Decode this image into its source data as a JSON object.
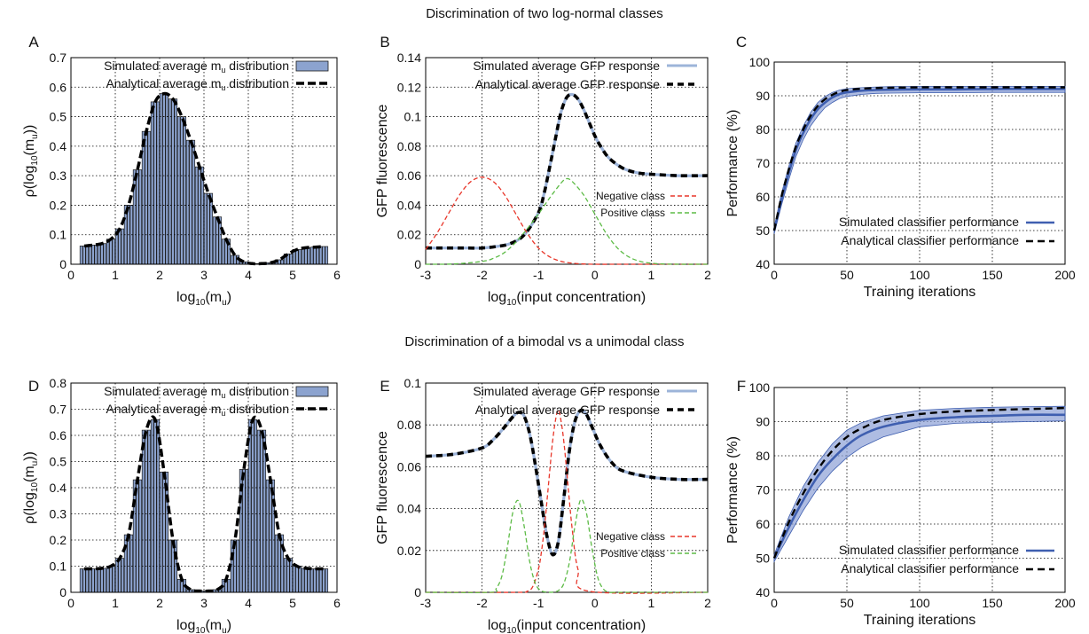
{
  "titles": {
    "top": "Discrimination of two log-normal classes",
    "bottom": "Discrimination of a bimodal vs a unimodal class"
  },
  "colors": {
    "bar_fill": "#8ca3cf",
    "simulated_gfp": "#9db4d9",
    "analytical": "#000000",
    "negative": "#e8362a",
    "positive": "#5dbb46",
    "performance_line": "#3f5fb0",
    "performance_band": "#8ca0d6"
  },
  "chart_data": [
    {
      "id": "A",
      "panel_letter": "A",
      "type": "bar",
      "xlabel": "log10(mu)",
      "ylabel": "ρ(log10(mu))",
      "xlim": [
        0,
        6
      ],
      "ylim": [
        0,
        0.7
      ],
      "xticks": [
        "0",
        "1",
        "2",
        "3",
        "4",
        "5",
        "6"
      ],
      "yticks": [
        "0",
        "0.1",
        "0.2",
        "0.3",
        "0.4",
        "0.5",
        "0.6",
        "0.7"
      ],
      "grid": true,
      "legend_position": "top-right",
      "legend": [
        "Simulated average mu distribution",
        "Analytical average mu distribution"
      ],
      "bar_values": {
        "x": [
          0.3,
          0.5,
          0.7,
          0.9,
          1.1,
          1.3,
          1.5,
          1.7,
          1.9,
          2.1,
          2.3,
          2.5,
          2.7,
          2.9,
          3.1,
          3.3,
          3.5,
          3.7,
          3.9,
          4.1,
          4.3,
          4.5,
          4.7,
          4.9,
          5.1,
          5.3,
          5.5,
          5.7
        ],
        "y": [
          0.062,
          0.065,
          0.07,
          0.085,
          0.12,
          0.2,
          0.32,
          0.45,
          0.55,
          0.578,
          0.56,
          0.5,
          0.42,
          0.33,
          0.24,
          0.16,
          0.085,
          0.03,
          0.008,
          0.002,
          0.002,
          0.005,
          0.015,
          0.035,
          0.05,
          0.056,
          0.058,
          0.06
        ]
      },
      "analytical_curve": {
        "x": [
          0.3,
          0.5,
          0.7,
          0.9,
          1.1,
          1.3,
          1.5,
          1.7,
          1.9,
          2.1,
          2.3,
          2.5,
          2.7,
          2.9,
          3.1,
          3.3,
          3.5,
          3.7,
          3.9,
          4.1,
          4.3,
          4.5,
          4.7,
          4.9,
          5.1,
          5.3,
          5.5,
          5.7
        ],
        "y": [
          0.062,
          0.065,
          0.07,
          0.085,
          0.12,
          0.2,
          0.32,
          0.45,
          0.55,
          0.578,
          0.56,
          0.5,
          0.42,
          0.33,
          0.24,
          0.16,
          0.085,
          0.03,
          0.008,
          0.002,
          0.002,
          0.005,
          0.015,
          0.035,
          0.05,
          0.056,
          0.058,
          0.06
        ]
      }
    },
    {
      "id": "B",
      "panel_letter": "B",
      "type": "line",
      "xlabel": "log10(input concentration)",
      "ylabel": "GFP fluorescence",
      "xlim": [
        -3,
        2
      ],
      "ylim": [
        0,
        0.14
      ],
      "xticks": [
        "-3",
        "-2",
        "-1",
        "0",
        "1",
        "2"
      ],
      "yticks": [
        "0",
        "0.02",
        "0.04",
        "0.06",
        "0.08",
        "0.1",
        "0.12",
        "0.14"
      ],
      "grid": true,
      "legend_position": "top-right",
      "legend": [
        "Simulated average GFP response",
        "Analytical average GFP response"
      ],
      "legend2": [
        "Negative class",
        "Positive class"
      ],
      "series": [
        {
          "name": "Simulated average GFP response",
          "role": "simulated",
          "x": [
            -3,
            -2.75,
            -2.5,
            -2.25,
            -2,
            -1.75,
            -1.5,
            -1.25,
            -1,
            -0.9,
            -0.8,
            -0.7,
            -0.6,
            -0.5,
            -0.4,
            -0.3,
            -0.2,
            -0.1,
            0,
            0.1,
            0.25,
            0.5,
            0.75,
            1,
            1.5,
            2
          ],
          "y": [
            0.011,
            0.011,
            0.011,
            0.011,
            0.011,
            0.012,
            0.014,
            0.02,
            0.035,
            0.048,
            0.066,
            0.085,
            0.103,
            0.113,
            0.115,
            0.112,
            0.105,
            0.096,
            0.087,
            0.08,
            0.072,
            0.065,
            0.062,
            0.061,
            0.06,
            0.06
          ]
        },
        {
          "name": "Analytical average GFP response",
          "role": "analytical",
          "x": [
            -3,
            -2.75,
            -2.5,
            -2.25,
            -2,
            -1.75,
            -1.5,
            -1.25,
            -1,
            -0.9,
            -0.8,
            -0.7,
            -0.6,
            -0.5,
            -0.4,
            -0.3,
            -0.2,
            -0.1,
            0,
            0.1,
            0.25,
            0.5,
            0.75,
            1,
            1.5,
            2
          ],
          "y": [
            0.011,
            0.011,
            0.011,
            0.011,
            0.011,
            0.012,
            0.014,
            0.02,
            0.035,
            0.048,
            0.066,
            0.085,
            0.103,
            0.113,
            0.115,
            0.112,
            0.105,
            0.096,
            0.087,
            0.08,
            0.072,
            0.065,
            0.062,
            0.061,
            0.06,
            0.06
          ]
        },
        {
          "name": "Negative class",
          "role": "negative",
          "x": [
            -3,
            -2.8,
            -2.6,
            -2.4,
            -2.2,
            -2,
            -1.8,
            -1.6,
            -1.4,
            -1.2,
            -1,
            -0.8,
            -0.6,
            -0.4,
            -0.2,
            0,
            0.5,
            1,
            1.5,
            2
          ],
          "y": [
            0.01,
            0.021,
            0.034,
            0.047,
            0.056,
            0.059,
            0.056,
            0.047,
            0.034,
            0.021,
            0.011,
            0.005,
            0.002,
            0.0007,
            0.0002,
            0,
            0,
            0,
            0,
            0
          ]
        },
        {
          "name": "Positive class",
          "role": "positive",
          "x": [
            -3,
            -2.5,
            -2,
            -1.8,
            -1.6,
            -1.4,
            -1.2,
            -1,
            -0.8,
            -0.6,
            -0.5,
            -0.4,
            -0.2,
            0,
            0.2,
            0.4,
            0.6,
            0.8,
            1,
            1.2,
            1.5,
            2
          ],
          "y": [
            0,
            0.0002,
            0.0019,
            0.004,
            0.008,
            0.015,
            0.024,
            0.034,
            0.045,
            0.055,
            0.058,
            0.056,
            0.047,
            0.034,
            0.021,
            0.011,
            0.005,
            0.002,
            0.0007,
            0.0002,
            0,
            0
          ]
        }
      ]
    },
    {
      "id": "C",
      "panel_letter": "C",
      "type": "line",
      "xlabel": "Training iterations",
      "ylabel": "Performance (%)",
      "xlim": [
        0,
        200
      ],
      "ylim": [
        40,
        100
      ],
      "xticks": [
        "0",
        "50",
        "100",
        "150",
        "200"
      ],
      "yticks": [
        "40",
        "50",
        "60",
        "70",
        "80",
        "90",
        "100"
      ],
      "grid": true,
      "legend_position": "bottom-right",
      "legend": [
        "Simulated classifier performance",
        "Analytical classifier performance"
      ],
      "x": [
        0,
        5,
        10,
        15,
        20,
        25,
        30,
        35,
        40,
        45,
        50,
        60,
        70,
        80,
        100,
        125,
        150,
        175,
        200
      ],
      "series": [
        {
          "name": "Simulated classifier performance",
          "role": "simulated",
          "y": [
            50,
            59,
            67,
            74,
            79,
            83,
            86,
            88,
            89.5,
            90.5,
            91,
            91.5,
            91.7,
            91.8,
            91.9,
            91.9,
            92,
            92,
            92
          ]
        },
        {
          "name": "Analytical classifier performance",
          "role": "analytical",
          "y": [
            50,
            60,
            68,
            75,
            80,
            84,
            87,
            89,
            90.3,
            91.2,
            91.7,
            92.1,
            92.3,
            92.4,
            92.5,
            92.5,
            92.5,
            92.5,
            92.5
          ]
        }
      ],
      "band": {
        "upper": [
          51,
          61,
          69,
          76,
          81,
          85,
          88,
          89.8,
          91,
          91.7,
          92.1,
          92.4,
          92.6,
          92.7,
          92.8,
          92.8,
          92.8,
          92.8,
          92.8
        ],
        "lower": [
          49,
          57.5,
          65,
          72,
          77,
          81,
          84,
          86.5,
          88,
          89.2,
          89.8,
          90.4,
          90.7,
          90.8,
          90.9,
          90.9,
          91,
          91,
          91
        ]
      }
    },
    {
      "id": "D",
      "panel_letter": "D",
      "type": "bar",
      "xlabel": "log10(mu)",
      "ylabel": "ρ(log10(mu))",
      "xlim": [
        0,
        6
      ],
      "ylim": [
        0,
        0.8
      ],
      "xticks": [
        "0",
        "1",
        "2",
        "3",
        "4",
        "5",
        "6"
      ],
      "yticks": [
        "0",
        "0.1",
        "0.2",
        "0.3",
        "0.4",
        "0.5",
        "0.6",
        "0.7",
        "0.8"
      ],
      "grid": true,
      "legend_position": "top-right",
      "legend": [
        "Simulated average mu distribution",
        "Analytical average mu distribution"
      ],
      "bar_values": {
        "x": [
          0.3,
          0.5,
          0.7,
          0.9,
          1.1,
          1.3,
          1.5,
          1.7,
          1.9,
          2.1,
          2.3,
          2.5,
          2.7,
          2.9,
          3.1,
          3.3,
          3.5,
          3.7,
          3.9,
          4.1,
          4.3,
          4.5,
          4.7,
          4.9,
          5.1,
          5.3,
          5.5,
          5.7
        ],
        "y": [
          0.09,
          0.09,
          0.092,
          0.1,
          0.13,
          0.22,
          0.43,
          0.62,
          0.66,
          0.46,
          0.2,
          0.05,
          0.01,
          0.005,
          0.005,
          0.01,
          0.05,
          0.2,
          0.47,
          0.66,
          0.62,
          0.43,
          0.22,
          0.13,
          0.1,
          0.092,
          0.09,
          0.09
        ]
      },
      "analytical_curve": {
        "x": [
          0.3,
          0.5,
          0.7,
          0.9,
          1.1,
          1.3,
          1.5,
          1.7,
          1.9,
          2.1,
          2.3,
          2.5,
          2.7,
          2.9,
          3.1,
          3.3,
          3.5,
          3.7,
          3.9,
          4.1,
          4.3,
          4.5,
          4.7,
          4.9,
          5.1,
          5.3,
          5.5,
          5.7
        ],
        "y": [
          0.09,
          0.09,
          0.092,
          0.1,
          0.13,
          0.22,
          0.43,
          0.62,
          0.66,
          0.46,
          0.2,
          0.05,
          0.01,
          0.005,
          0.005,
          0.01,
          0.05,
          0.2,
          0.47,
          0.66,
          0.62,
          0.43,
          0.22,
          0.13,
          0.1,
          0.092,
          0.09,
          0.09
        ]
      }
    },
    {
      "id": "E",
      "panel_letter": "E",
      "type": "line",
      "xlabel": "log10(input concentration)",
      "ylabel": "GFP fluorescence",
      "xlim": [
        -3,
        2
      ],
      "ylim": [
        0,
        0.1
      ],
      "xticks": [
        "-3",
        "-2",
        "-1",
        "0",
        "1",
        "2"
      ],
      "yticks": [
        "0",
        "0.02",
        "0.04",
        "0.06",
        "0.08",
        "0.1"
      ],
      "grid": true,
      "legend_position": "top-right",
      "legend": [
        "Simulated average GFP response",
        "Analytical average GFP response"
      ],
      "legend2": [
        "Negative class",
        "Positive class"
      ],
      "series": [
        {
          "name": "Simulated average GFP response",
          "role": "simulated",
          "x": [
            -3,
            -2.5,
            -2,
            -1.8,
            -1.6,
            -1.45,
            -1.35,
            -1.25,
            -1.15,
            -1.05,
            -0.95,
            -0.85,
            -0.75,
            -0.65,
            -0.55,
            -0.45,
            -0.35,
            -0.25,
            -0.15,
            -0.05,
            0.1,
            0.3,
            0.5,
            1,
            1.5,
            2
          ],
          "y": [
            0.065,
            0.066,
            0.069,
            0.073,
            0.079,
            0.084,
            0.086,
            0.084,
            0.075,
            0.06,
            0.043,
            0.027,
            0.018,
            0.024,
            0.045,
            0.068,
            0.082,
            0.087,
            0.085,
            0.079,
            0.07,
            0.062,
            0.058,
            0.055,
            0.054,
            0.054
          ]
        },
        {
          "name": "Analytical average GFP response",
          "role": "analytical",
          "x": [
            -3,
            -2.5,
            -2,
            -1.8,
            -1.6,
            -1.45,
            -1.35,
            -1.25,
            -1.15,
            -1.05,
            -0.95,
            -0.85,
            -0.75,
            -0.65,
            -0.55,
            -0.45,
            -0.35,
            -0.25,
            -0.15,
            -0.05,
            0.1,
            0.3,
            0.5,
            1,
            1.5,
            2
          ],
          "y": [
            0.065,
            0.066,
            0.069,
            0.073,
            0.079,
            0.084,
            0.086,
            0.084,
            0.075,
            0.06,
            0.043,
            0.027,
            0.018,
            0.024,
            0.045,
            0.068,
            0.082,
            0.087,
            0.085,
            0.079,
            0.07,
            0.062,
            0.058,
            0.055,
            0.054,
            0.054
          ]
        },
        {
          "name": "Negative class",
          "role": "negative",
          "x": [
            -3,
            -1.4,
            -1.2,
            -1.1,
            -1,
            -0.95,
            -0.9,
            -0.85,
            -0.8,
            -0.75,
            -0.7,
            -0.65,
            -0.6,
            -0.55,
            -0.5,
            -0.4,
            -0.3,
            -0.1,
            2
          ],
          "y": [
            0,
            0,
            0.0005,
            0.0028,
            0.0111,
            0.0189,
            0.0296,
            0.0433,
            0.0581,
            0.072,
            0.082,
            0.0873,
            0.082,
            0.072,
            0.0581,
            0.0296,
            0.0111,
            0.0005,
            0
          ]
        },
        {
          "name": "Positive class",
          "role": "positive",
          "x": [
            -3,
            -1.85,
            -1.75,
            -1.65,
            -1.55,
            -1.45,
            -1.35,
            -1.25,
            -1.15,
            -1.05,
            -0.95,
            -0.85,
            -0.75,
            -0.65,
            -0.55,
            -0.45,
            -0.35,
            -0.25,
            -0.15,
            -0.05,
            0.05,
            0.15,
            0.25,
            0.35,
            0.45,
            2
          ],
          "y": [
            0,
            0,
            0.0018,
            0.0077,
            0.0218,
            0.0388,
            0.0436,
            0.031,
            0.0138,
            0.0039,
            0.0007,
            0.0001,
            0.0001,
            0.0008,
            0.0042,
            0.0146,
            0.0321,
            0.0443,
            0.0379,
            0.0208,
            0.0072,
            0.0016,
            0,
            0,
            0,
            0
          ]
        }
      ]
    },
    {
      "id": "F",
      "panel_letter": "F",
      "type": "line",
      "xlabel": "Training iterations",
      "ylabel": "Performance (%)",
      "xlim": [
        0,
        200
      ],
      "ylim": [
        40,
        100
      ],
      "xticks": [
        "0",
        "50",
        "100",
        "150",
        "200"
      ],
      "yticks": [
        "40",
        "50",
        "60",
        "70",
        "80",
        "90",
        "100"
      ],
      "grid": true,
      "legend_position": "bottom-right",
      "legend": [
        "Simulated classifier performance",
        "Analytical classifier performance"
      ],
      "x": [
        0,
        10,
        20,
        30,
        40,
        50,
        60,
        75,
        100,
        125,
        150,
        175,
        200
      ],
      "series": [
        {
          "name": "Simulated classifier performance",
          "role": "simulated",
          "y": [
            50,
            59,
            67,
            74,
            79,
            83,
            86,
            88.5,
            90.5,
            91.3,
            91.7,
            92,
            92
          ]
        },
        {
          "name": "Analytical classifier performance",
          "role": "analytical",
          "y": [
            50,
            60.5,
            69,
            76,
            81.5,
            85.5,
            88,
            90.5,
            92.2,
            93,
            93.4,
            93.7,
            94
          ]
        }
      ],
      "band": {
        "upper": [
          51,
          62,
          71,
          78,
          83.5,
          87.5,
          89.7,
          91.7,
          93.3,
          93.9,
          94.2,
          94.4,
          94.5
        ],
        "lower": [
          49,
          56.5,
          64,
          70.5,
          75.5,
          79.5,
          82.5,
          85.5,
          88.5,
          89.5,
          89.8,
          90,
          90.2
        ]
      }
    }
  ]
}
